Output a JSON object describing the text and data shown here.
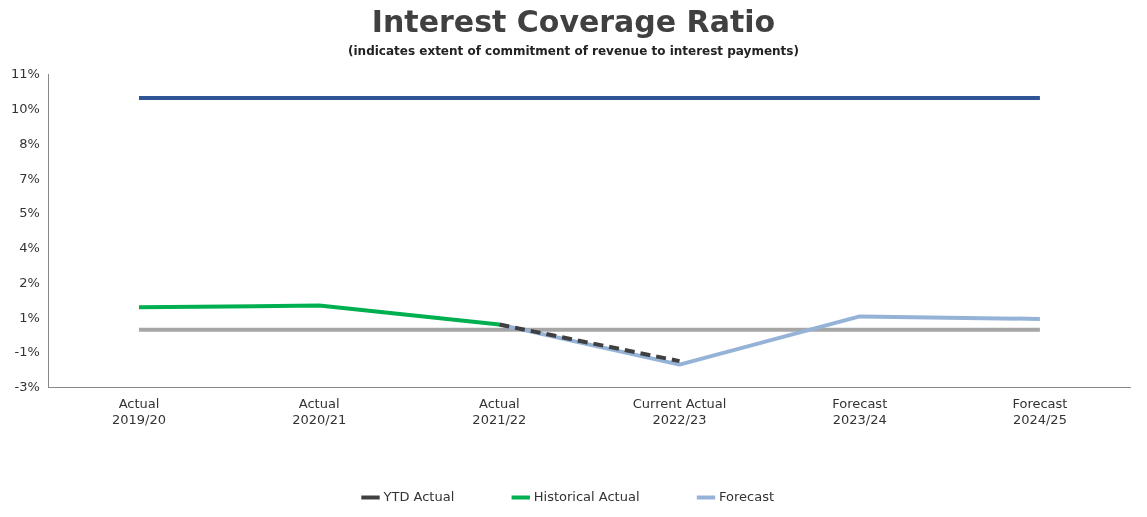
{
  "chart_data": {
    "type": "line",
    "title": "Interest Coverage Ratio",
    "subtitle": "(indicates extent of commitment of revenue to interest payments)",
    "categories": [
      "Actual\n2019/20",
      "Actual\n2020/21",
      "Actual\n2021/22",
      "Current Actual\n2022/23",
      "Forecast\n2023/24",
      "Forecast\n2024/25"
    ],
    "series": [
      {
        "name": "YTD Actual",
        "color": "#404040",
        "line_style": "dashed",
        "values": [
          null,
          null,
          0.23,
          -1.35,
          null,
          null
        ]
      },
      {
        "name": "Historical Actual",
        "color": "#00b050",
        "line_style": "solid",
        "values": [
          0.97,
          1.05,
          0.23,
          null,
          null,
          null
        ]
      },
      {
        "name": "Forecast",
        "color": "#95b3d7",
        "line_style": "solid",
        "values": [
          null,
          null,
          0.23,
          -1.5,
          0.58,
          0.47
        ]
      }
    ],
    "ref_lines": [
      {
        "axis": "y",
        "value": 10,
        "color": "#2f5597"
      },
      {
        "axis": "y",
        "value": 0,
        "color": "#a6a6a6"
      }
    ],
    "ylim": [
      -2.5,
      11
    ],
    "yticks": [
      {
        "value": -2.5,
        "label": "-3%"
      },
      {
        "value": -1,
        "label": "-1%"
      },
      {
        "value": 0.5,
        "label": "1%"
      },
      {
        "value": 2,
        "label": "2%"
      },
      {
        "value": 3.5,
        "label": "4%"
      },
      {
        "value": 5,
        "label": "5%"
      },
      {
        "value": 6.5,
        "label": "7%"
      },
      {
        "value": 8,
        "label": "8%"
      },
      {
        "value": 9.5,
        "label": "10%"
      },
      {
        "value": 11,
        "label": "11%"
      }
    ],
    "grid": false,
    "legend": "bottom",
    "marker": "none"
  }
}
